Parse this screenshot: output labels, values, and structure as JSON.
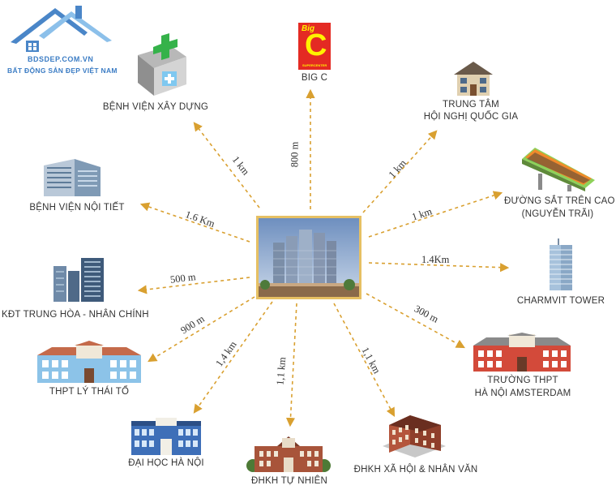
{
  "logo": {
    "site": "BDSDEP.COM.VN",
    "tagline": "BẤT ĐỘNG SẢN ĐẸP VIỆT NAM",
    "icon": "house-roof-logo-icon"
  },
  "center": {
    "icon": "apartment-towers-photo"
  },
  "places": [
    {
      "id": "big-c",
      "name_lines": [
        "BIG C"
      ],
      "distance": "800 m",
      "icon": "big-c-logo-icon"
    },
    {
      "id": "benh-vien-xay-dung",
      "name_lines": [
        "BỆNH VIỆN XÂY DỰNG"
      ],
      "distance": "1 km",
      "icon": "hospital-icon"
    },
    {
      "id": "trung-tam-hoi-nghi",
      "name_lines": [
        "TRUNG TÂM",
        "HỘI NGHỊ QUỐC GIA"
      ],
      "distance": "1 km",
      "icon": "house-icon"
    },
    {
      "id": "benh-vien-noi-tiet",
      "name_lines": [
        "BỆNH VIỆN NỘI TIẾT"
      ],
      "distance": "1.6 Km",
      "icon": "office-building-icon"
    },
    {
      "id": "duong-sat",
      "name_lines": [
        "ĐƯỜNG SẮT TRÊN CAO",
        "(NGUYỄN TRÃI)"
      ],
      "distance": "1 km",
      "icon": "metro-train-icon"
    },
    {
      "id": "kdt-trung-hoa",
      "name_lines": [
        "KĐT TRUNG HÒA - NHÂN CHÍNH"
      ],
      "distance": "500 m",
      "icon": "skyscrapers-icon"
    },
    {
      "id": "charmvit",
      "name_lines": [
        "CHARMVIT TOWER"
      ],
      "distance": "1.4Km",
      "icon": "tower-icon"
    },
    {
      "id": "thpt-ly-thai-to",
      "name_lines": [
        "THPT LÝ THÁI TỔ"
      ],
      "distance": "900 m",
      "icon": "school-icon"
    },
    {
      "id": "amsterdam",
      "name_lines": [
        "TRƯỜNG THPT",
        "HÀ NỘI AMSTERDAM"
      ],
      "distance": "300 m",
      "icon": "school-red-icon"
    },
    {
      "id": "dai-hoc-ha-noi",
      "name_lines": [
        "ĐẠI HỌC HÀ NỘI"
      ],
      "distance": "1,4 km",
      "icon": "university-icon"
    },
    {
      "id": "dhkh-tu-nhien",
      "name_lines": [
        "ĐHKH TỰ NHIÊN"
      ],
      "distance": "1,1 km",
      "icon": "university-brick-icon"
    },
    {
      "id": "dhkh-xa-hoi",
      "name_lines": [
        "ĐHKH XÃ HỘI & NHÂN VĂN"
      ],
      "distance": "1,1 km",
      "icon": "brick-campus-icon"
    }
  ],
  "colors": {
    "arrow": "#d9a030",
    "frame": "#e0b84a",
    "logo_blue": "#3b7cc4"
  }
}
